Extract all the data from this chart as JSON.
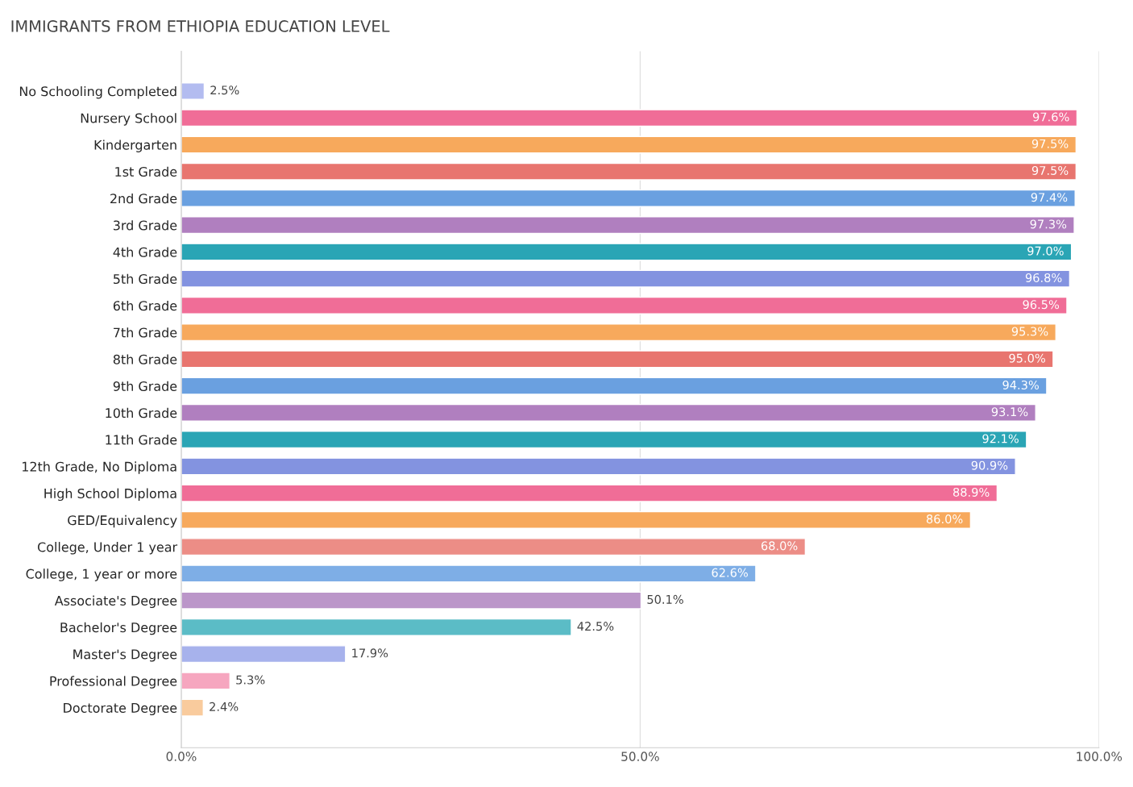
{
  "chart_data": {
    "type": "bar",
    "orientation": "horizontal",
    "title": "IMMIGRANTS FROM ETHIOPIA EDUCATION LEVEL",
    "categories": [
      "No Schooling Completed",
      "Nursery School",
      "Kindergarten",
      "1st Grade",
      "2nd Grade",
      "3rd Grade",
      "4th Grade",
      "5th Grade",
      "6th Grade",
      "7th Grade",
      "8th Grade",
      "9th Grade",
      "10th Grade",
      "11th Grade",
      "12th Grade, No Diploma",
      "High School Diploma",
      "GED/Equivalency",
      "College, Under 1 year",
      "College, 1 year or more",
      "Associate's Degree",
      "Bachelor's Degree",
      "Master's Degree",
      "Professional Degree",
      "Doctorate Degree"
    ],
    "values": [
      2.5,
      97.6,
      97.5,
      97.5,
      97.4,
      97.3,
      97.0,
      96.8,
      96.5,
      95.3,
      95.0,
      94.3,
      93.1,
      92.1,
      90.9,
      88.9,
      86.0,
      68.0,
      62.6,
      50.1,
      42.5,
      17.9,
      5.3,
      2.4
    ],
    "colors": [
      "#b3bcf0",
      "#f06d97",
      "#f7a95c",
      "#e8756f",
      "#6aa0e0",
      "#b07fbf",
      "#2aa5b5",
      "#8393e0",
      "#f06d97",
      "#f7a95c",
      "#e8756f",
      "#6aa0e0",
      "#b07fbf",
      "#2aa5b5",
      "#8393e0",
      "#f06d97",
      "#f7a95c",
      "#ec8d86",
      "#7eaee6",
      "#bb96c9",
      "#5bbcc6",
      "#a7b2ec",
      "#f6a6bf",
      "#f9cb9d"
    ],
    "value_labels": [
      "2.5%",
      "97.6%",
      "97.5%",
      "97.5%",
      "97.4%",
      "97.3%",
      "97.0%",
      "96.8%",
      "96.5%",
      "95.3%",
      "95.0%",
      "94.3%",
      "93.1%",
      "92.1%",
      "90.9%",
      "88.9%",
      "86.0%",
      "68.0%",
      "62.6%",
      "50.1%",
      "42.5%",
      "17.9%",
      "5.3%",
      "2.4%"
    ],
    "xlim": [
      0,
      100
    ],
    "xticks": [
      {
        "value": 0,
        "label": "0.0%"
      },
      {
        "value": 50,
        "label": "50.0%"
      },
      {
        "value": 100,
        "label": "100.0%"
      }
    ],
    "grid": "x"
  }
}
